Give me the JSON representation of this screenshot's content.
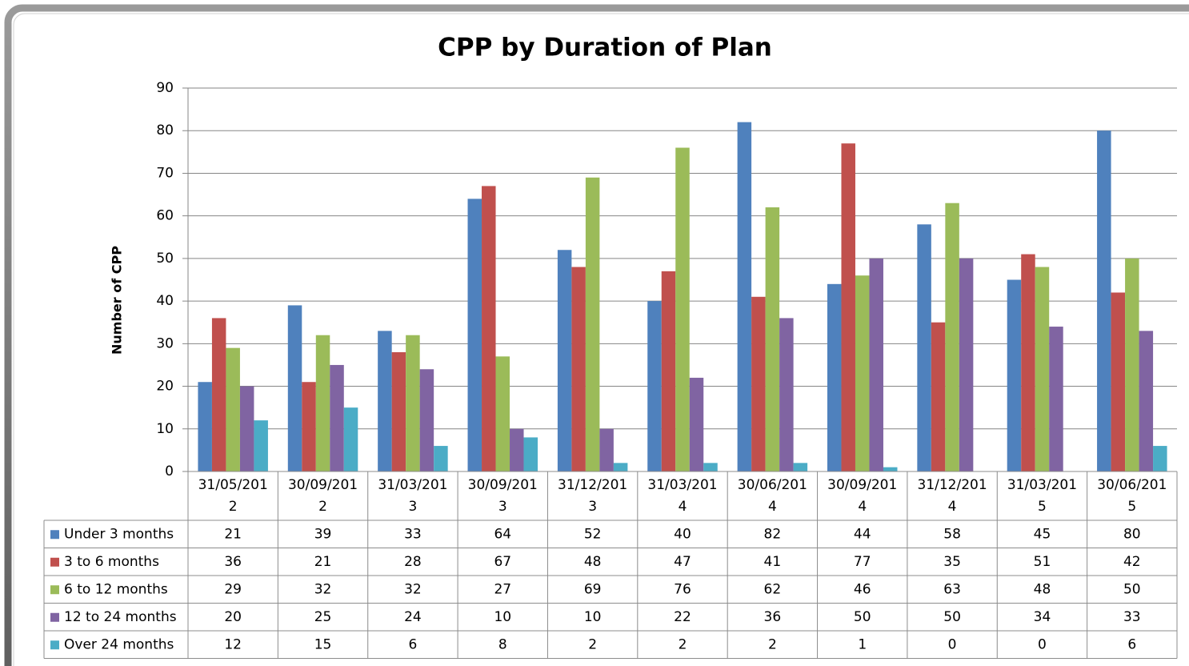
{
  "chart_data": {
    "type": "bar",
    "title": "CPP by Duration of Plan",
    "y_axis_label": "Number of CPP",
    "categories": [
      "31/05/2012",
      "30/09/2012",
      "31/03/2013",
      "30/09/2013",
      "31/12/2013",
      "31/03/2014",
      "30/06/2014",
      "30/09/2014",
      "31/12/2014",
      "31/03/2015",
      "30/06/2015"
    ],
    "series": [
      {
        "name": "Under 3 months",
        "color": "#4f81bd",
        "values": [
          21,
          39,
          33,
          64,
          52,
          40,
          82,
          44,
          58,
          45,
          80
        ]
      },
      {
        "name": "3 to 6 months",
        "color": "#c0504d",
        "values": [
          36,
          21,
          28,
          67,
          48,
          47,
          41,
          77,
          35,
          51,
          42
        ]
      },
      {
        "name": "6 to 12 months",
        "color": "#9bbb59",
        "values": [
          29,
          32,
          32,
          27,
          69,
          76,
          62,
          46,
          63,
          48,
          50
        ]
      },
      {
        "name": "12 to 24 months",
        "color": "#8064a2",
        "values": [
          20,
          25,
          24,
          10,
          10,
          22,
          36,
          50,
          50,
          34,
          33
        ]
      },
      {
        "name": "Over 24 months",
        "color": "#4bacc6",
        "values": [
          12,
          15,
          6,
          8,
          2,
          2,
          2,
          1,
          0,
          0,
          6
        ]
      }
    ],
    "ylim": [
      0,
      90
    ],
    "yticks": [
      0,
      10,
      20,
      30,
      40,
      50,
      60,
      70,
      80,
      90
    ],
    "grid": true,
    "data_table": true
  }
}
